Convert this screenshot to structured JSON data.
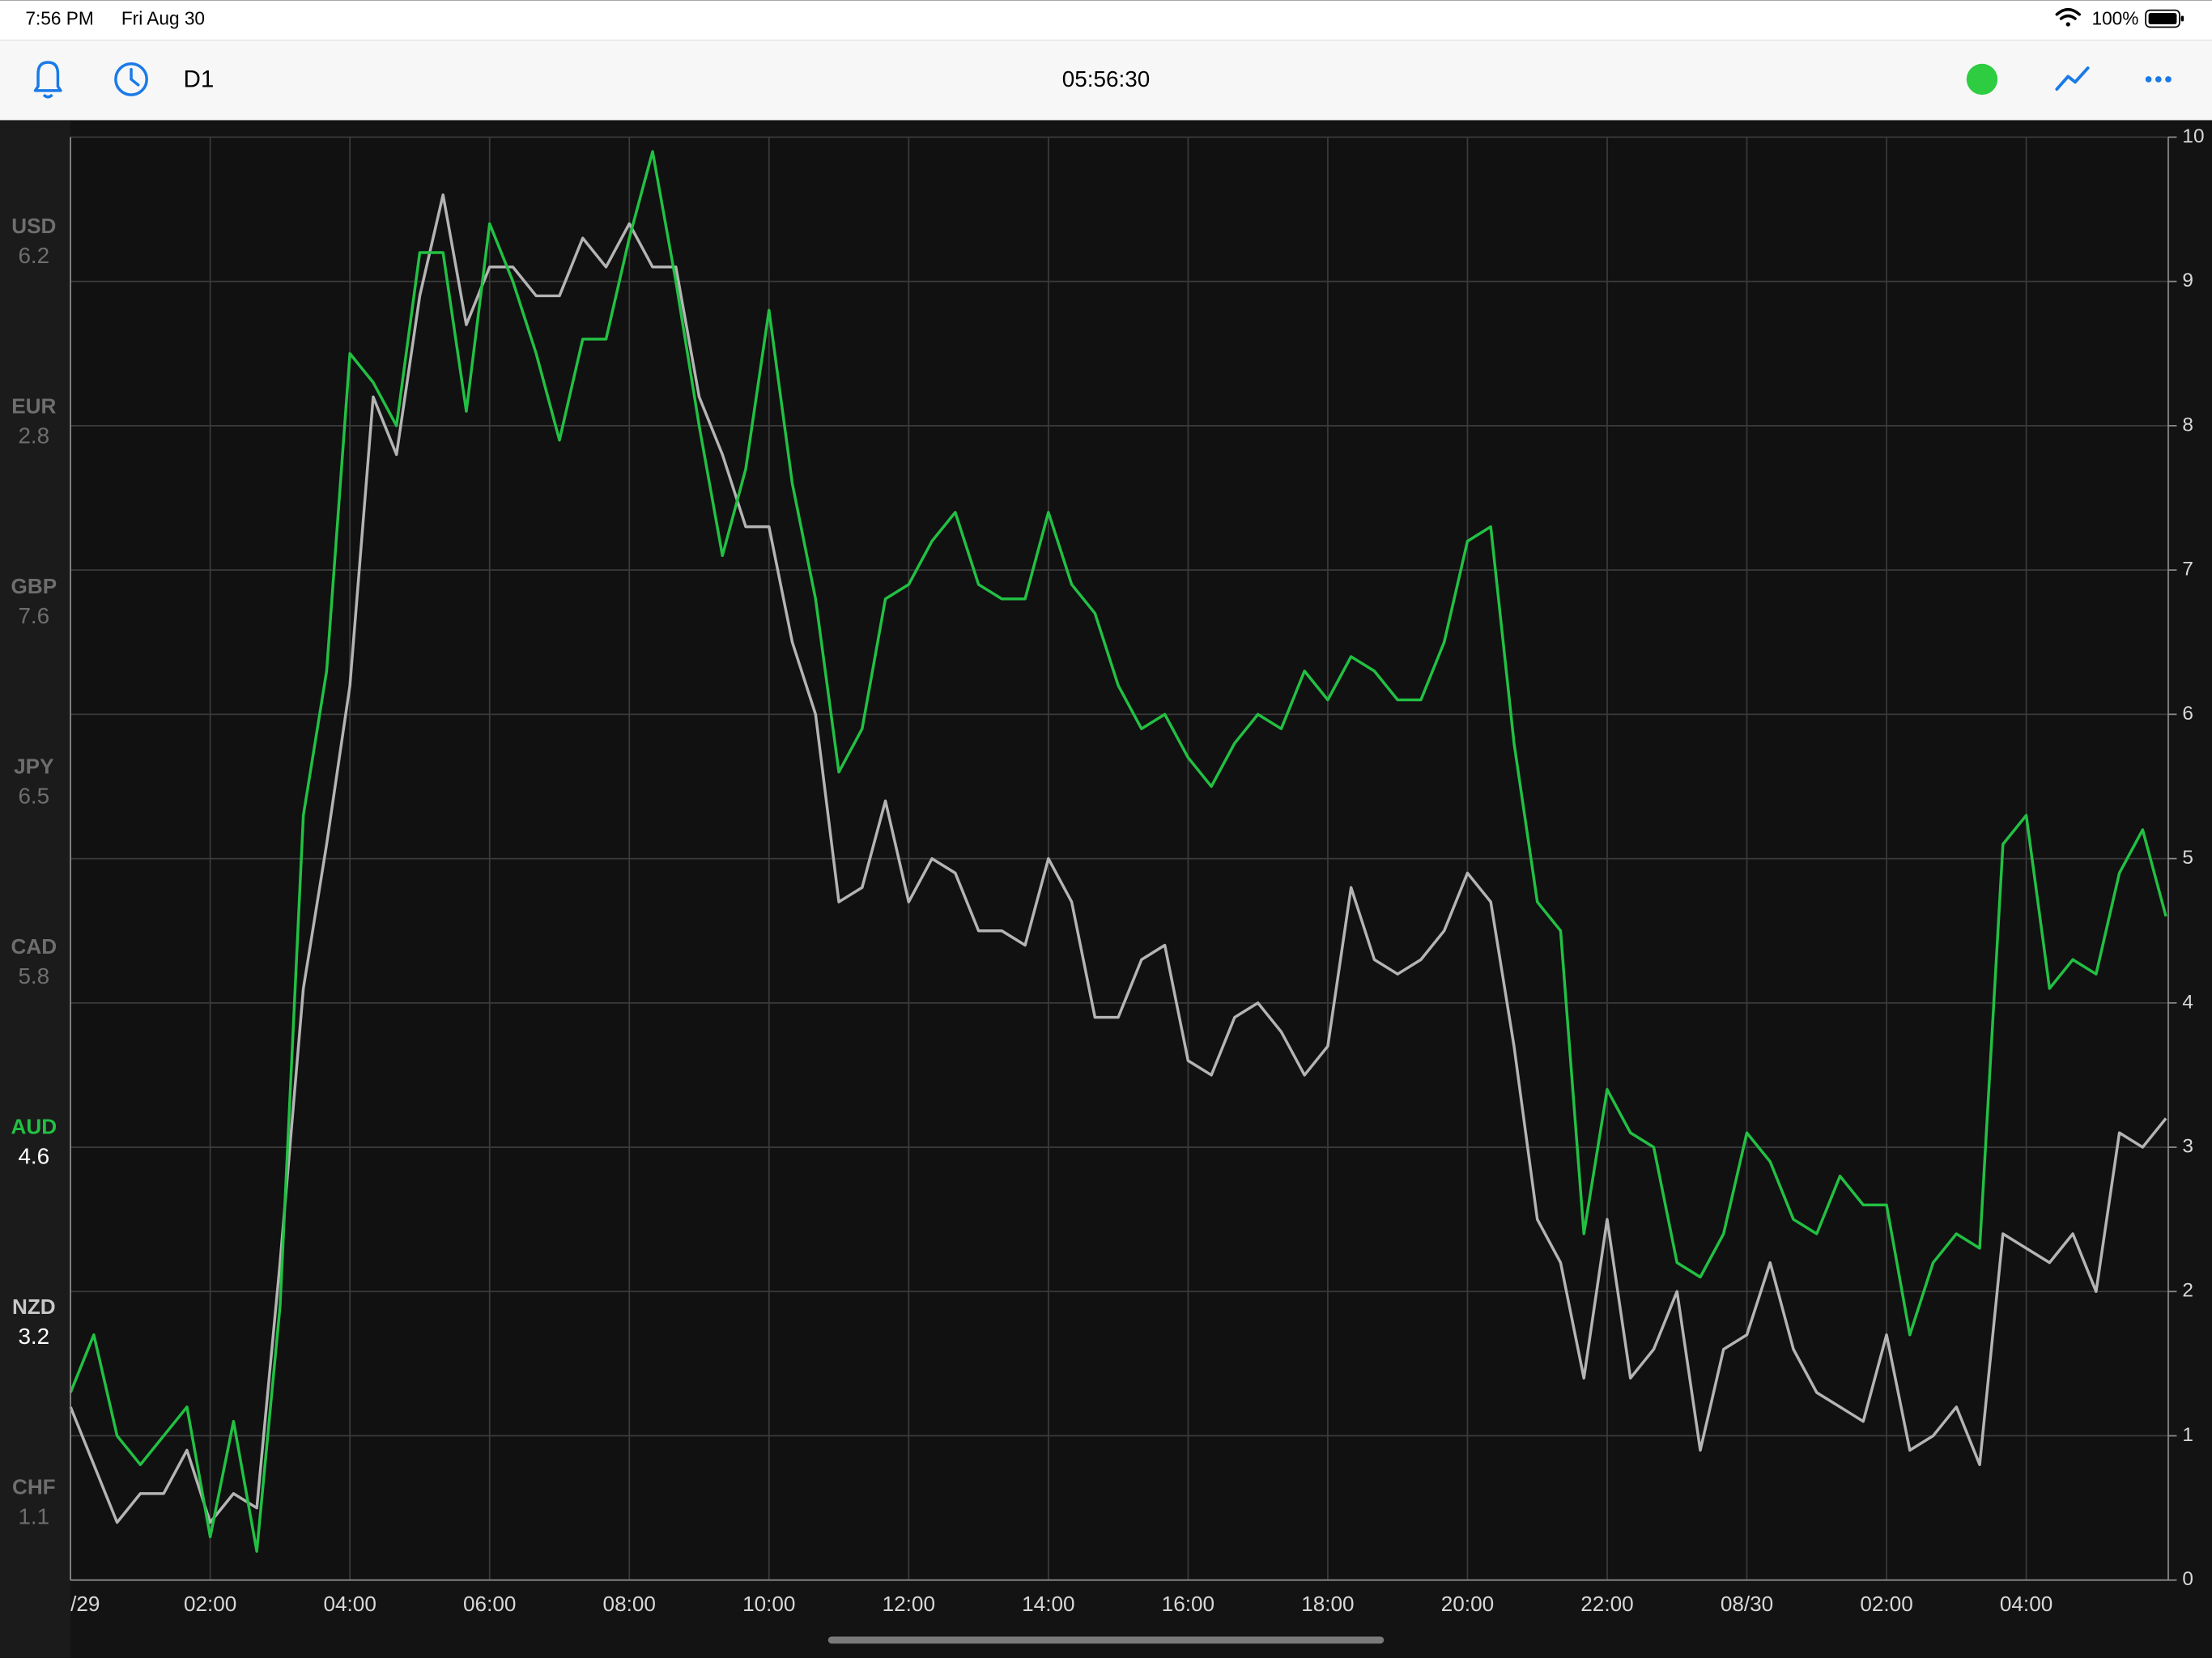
{
  "status_bar": {
    "time": "7:56 PM",
    "date": "Fri Aug 30",
    "battery": "100%"
  },
  "toolbar": {
    "timeframe": "D1",
    "clock": "05:56:30"
  },
  "currency_panel": [
    {
      "name": "USD",
      "value": 6.2,
      "color": "#6e6e6e",
      "active": false
    },
    {
      "name": "EUR",
      "value": 2.8,
      "color": "#6e6e6e",
      "active": false
    },
    {
      "name": "GBP",
      "value": 7.6,
      "color": "#6e6e6e",
      "active": false
    },
    {
      "name": "JPY",
      "value": 6.5,
      "color": "#6e6e6e",
      "active": false
    },
    {
      "name": "CAD",
      "value": 5.8,
      "color": "#6e6e6e",
      "active": false
    },
    {
      "name": "AUD",
      "value": 4.6,
      "color": "#22c043",
      "active": true
    },
    {
      "name": "NZD",
      "value": 3.2,
      "color": "#c8c8c8",
      "active": true
    },
    {
      "name": "CHF",
      "value": 1.1,
      "color": "#6e6e6e",
      "active": false
    }
  ],
  "chart_data": {
    "type": "line",
    "grid": true,
    "x": [
      0,
      20,
      40,
      60,
      80,
      100,
      120,
      140,
      160,
      180,
      200,
      220,
      240,
      260,
      280,
      300,
      320,
      340,
      360,
      380,
      400,
      420,
      440,
      460,
      480,
      500,
      520,
      540,
      560,
      580,
      600,
      620,
      640,
      660,
      680,
      700,
      720,
      740,
      760,
      780,
      800,
      820,
      840,
      860,
      880,
      900,
      920,
      940,
      960,
      980,
      1000,
      1020,
      1040,
      1060,
      1080,
      1100,
      1120,
      1140,
      1160,
      1180,
      1200,
      1220,
      1240,
      1260,
      1280,
      1300,
      1320,
      1340,
      1360,
      1380,
      1400,
      1420,
      1440,
      1460,
      1480,
      1500,
      1520,
      1540,
      1560,
      1580,
      1600,
      1620,
      1640,
      1660,
      1680,
      1700,
      1720,
      1740,
      1760,
      1780,
      1800
    ],
    "xlim": [
      0,
      1802
    ],
    "xticks": [
      {
        "value": 0,
        "label": "/29"
      },
      {
        "value": 120,
        "label": "02:00"
      },
      {
        "value": 240,
        "label": "04:00"
      },
      {
        "value": 360,
        "label": "06:00"
      },
      {
        "value": 480,
        "label": "08:00"
      },
      {
        "value": 600,
        "label": "10:00"
      },
      {
        "value": 720,
        "label": "12:00"
      },
      {
        "value": 840,
        "label": "14:00"
      },
      {
        "value": 960,
        "label": "16:00"
      },
      {
        "value": 1080,
        "label": "18:00"
      },
      {
        "value": 1200,
        "label": "20:00"
      },
      {
        "value": 1320,
        "label": "22:00"
      },
      {
        "value": 1440,
        "label": "08/30"
      },
      {
        "value": 1560,
        "label": "02:00"
      },
      {
        "value": 1680,
        "label": "04:00"
      }
    ],
    "ylim": [
      0,
      10
    ],
    "yticks": [
      0,
      1,
      2,
      3,
      4,
      5,
      6,
      7,
      8,
      9,
      10
    ],
    "series": [
      {
        "color": "#22c043",
        "values": [
          1.3,
          1.7,
          1.0,
          0.8,
          1.0,
          1.2,
          0.3,
          1.1,
          0.2,
          1.9,
          5.3,
          6.3,
          8.5,
          8.3,
          8.0,
          9.2,
          9.2,
          8.1,
          9.4,
          9.0,
          8.5,
          7.9,
          8.6,
          8.6,
          9.3,
          9.9,
          9.0,
          8.0,
          7.1,
          7.7,
          8.8,
          7.6,
          6.8,
          5.6,
          5.9,
          6.8,
          6.9,
          7.2,
          7.4,
          6.9,
          6.8,
          6.8,
          7.4,
          6.9,
          6.7,
          6.2,
          5.9,
          6.0,
          5.7,
          5.5,
          5.8,
          6.0,
          5.9,
          6.3,
          6.1,
          6.4,
          6.3,
          6.1,
          6.1,
          6.5,
          7.2,
          7.3,
          5.8,
          4.7,
          4.5,
          2.4,
          3.4,
          3.1,
          3.0,
          2.2,
          2.1,
          2.4,
          3.1,
          2.9,
          2.5,
          2.4,
          2.8,
          2.6,
          2.6,
          1.7,
          2.2,
          2.4,
          2.3,
          5.1,
          5.3,
          4.1,
          4.3,
          4.2,
          4.9,
          5.2,
          4.6
        ]
      },
      {
        "color": "#b4b4b4",
        "values": [
          1.2,
          0.8,
          0.4,
          0.6,
          0.6,
          0.9,
          0.4,
          0.6,
          0.5,
          2.2,
          4.1,
          5.1,
          6.2,
          8.2,
          7.8,
          8.9,
          9.6,
          8.7,
          9.1,
          9.1,
          8.9,
          8.9,
          9.3,
          9.1,
          9.4,
          9.1,
          9.1,
          8.2,
          7.8,
          7.3,
          7.3,
          6.5,
          6.0,
          4.7,
          4.8,
          5.4,
          4.7,
          5.0,
          4.9,
          4.5,
          4.5,
          4.4,
          5.0,
          4.7,
          3.9,
          3.9,
          4.3,
          4.4,
          3.6,
          3.5,
          3.9,
          4.0,
          3.8,
          3.5,
          3.7,
          4.8,
          4.3,
          4.2,
          4.3,
          4.5,
          4.9,
          4.7,
          3.7,
          2.5,
          2.2,
          1.4,
          2.5,
          1.4,
          1.6,
          2.0,
          0.9,
          1.6,
          1.7,
          2.2,
          1.6,
          1.3,
          1.2,
          1.1,
          1.7,
          0.9,
          1.0,
          1.2,
          0.8,
          2.4,
          2.3,
          2.2,
          2.4,
          2.0,
          3.1,
          3.0,
          3.2
        ]
      }
    ]
  }
}
